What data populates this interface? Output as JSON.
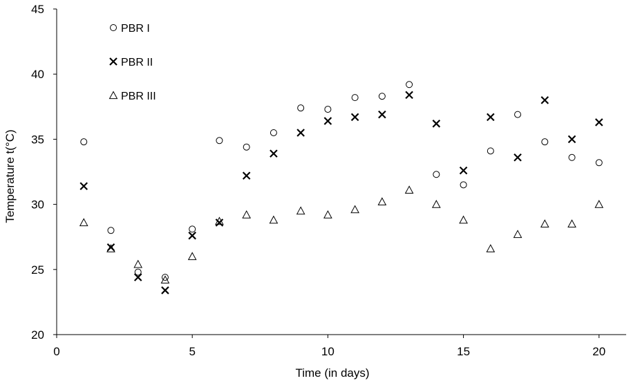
{
  "chart_data": {
    "type": "scatter",
    "title": "",
    "xlabel": "Time (in days)",
    "ylabel": "Temperature t(°C)",
    "xlim": [
      0,
      21
    ],
    "ylim": [
      20,
      45
    ],
    "xticks": [
      0,
      5,
      10,
      15,
      20
    ],
    "yticks": [
      20,
      25,
      30,
      35,
      40,
      45
    ],
    "grid": false,
    "legend_position": "top-left",
    "x": [
      1,
      2,
      3,
      4,
      5,
      6,
      7,
      8,
      9,
      10,
      11,
      12,
      13,
      14,
      15,
      16,
      17,
      18,
      19,
      20
    ],
    "series": [
      {
        "name": "PBR I",
        "marker": "circle",
        "values": [
          34.8,
          28.0,
          24.8,
          24.4,
          28.1,
          34.9,
          34.4,
          35.5,
          37.4,
          37.3,
          38.2,
          38.3,
          39.2,
          32.3,
          31.5,
          34.1,
          36.9,
          34.8,
          33.6,
          33.2
        ]
      },
      {
        "name": "PBR II",
        "marker": "cross",
        "values": [
          31.4,
          26.7,
          24.4,
          23.4,
          27.6,
          28.6,
          32.2,
          33.9,
          35.5,
          36.4,
          36.7,
          36.9,
          38.4,
          36.2,
          32.6,
          36.7,
          33.6,
          38.0,
          35.0,
          36.3
        ]
      },
      {
        "name": "PBR III",
        "marker": "triangle",
        "values": [
          28.6,
          26.6,
          25.4,
          24.2,
          26.0,
          28.7,
          29.2,
          28.8,
          29.5,
          29.2,
          29.6,
          30.2,
          31.1,
          30.0,
          28.8,
          26.6,
          27.7,
          28.5,
          28.5,
          30.0
        ]
      }
    ]
  },
  "colors": {
    "marker": "#000000",
    "axis": "#000000",
    "background": "#ffffff"
  }
}
